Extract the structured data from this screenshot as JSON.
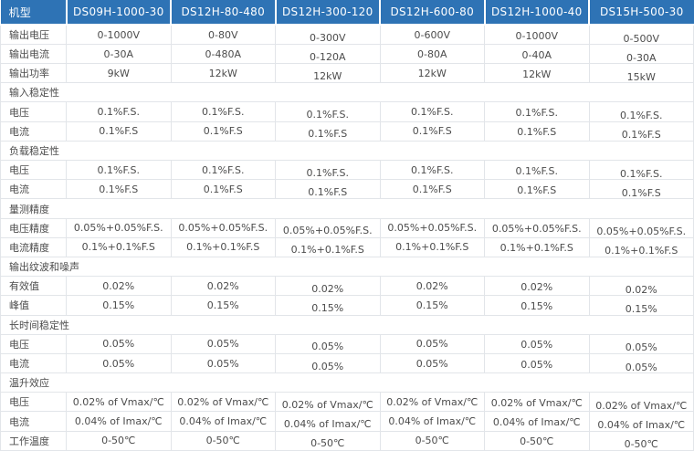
{
  "table": {
    "header": {
      "label": "机型",
      "models": [
        "DS09H-1000-30",
        "DS12H-80-480",
        "DS12H-300-120",
        "DS12H-600-80",
        "DS12H-1000-40",
        "DS15H-500-30"
      ]
    },
    "rows": [
      {
        "type": "data",
        "label": "输出电压",
        "values": [
          "0-1000V",
          "0-80V",
          "0-300V",
          "0-600V",
          "0-1000V",
          "0-500V"
        ]
      },
      {
        "type": "data",
        "label": "输出电流",
        "values": [
          "0-30A",
          "0-480A",
          "0-120A",
          "0-80A",
          "0-40A",
          "0-30A"
        ]
      },
      {
        "type": "data",
        "label": "输出功率",
        "values": [
          "9kW",
          "12kW",
          "12kW",
          "12kW",
          "12kW",
          "15kW"
        ]
      },
      {
        "type": "section",
        "label": "输入稳定性"
      },
      {
        "type": "data",
        "label": "电压",
        "values": [
          "0.1%F.S.",
          "0.1%F.S.",
          "0.1%F.S.",
          "0.1%F.S.",
          "0.1%F.S.",
          "0.1%F.S."
        ]
      },
      {
        "type": "data",
        "label": "电流",
        "values": [
          "0.1%F.S",
          "0.1%F.S",
          "0.1%F.S",
          "0.1%F.S",
          "0.1%F.S",
          "0.1%F.S"
        ]
      },
      {
        "type": "section",
        "label": "负载稳定性"
      },
      {
        "type": "data",
        "label": "电压",
        "values": [
          "0.1%F.S.",
          "0.1%F.S.",
          "0.1%F.S.",
          "0.1%F.S.",
          "0.1%F.S.",
          "0.1%F.S."
        ]
      },
      {
        "type": "data",
        "label": "电流",
        "values": [
          "0.1%F.S",
          "0.1%F.S",
          "0.1%F.S",
          "0.1%F.S",
          "0.1%F.S",
          "0.1%F.S"
        ]
      },
      {
        "type": "section",
        "label": "量测精度"
      },
      {
        "type": "data",
        "label": "电压精度",
        "values": [
          "0.05%+0.05%F.S.",
          "0.05%+0.05%F.S.",
          "0.05%+0.05%F.S.",
          "0.05%+0.05%F.S.",
          "0.05%+0.05%F.S.",
          "0.05%+0.05%F.S."
        ]
      },
      {
        "type": "data",
        "label": "电流精度",
        "values": [
          "0.1%+0.1%F.S",
          "0.1%+0.1%F.S",
          "0.1%+0.1%F.S",
          "0.1%+0.1%F.S",
          "0.1%+0.1%F.S",
          "0.1%+0.1%F.S"
        ]
      },
      {
        "type": "section",
        "label": "输出纹波和噪声"
      },
      {
        "type": "data",
        "label": "有效值",
        "values": [
          "0.02%",
          "0.02%",
          "0.02%",
          "0.02%",
          "0.02%",
          "0.02%"
        ]
      },
      {
        "type": "data",
        "label": "峰值",
        "values": [
          "0.15%",
          "0.15%",
          "0.15%",
          "0.15%",
          "0.15%",
          "0.15%"
        ]
      },
      {
        "type": "section",
        "label": "长时间稳定性"
      },
      {
        "type": "data",
        "label": "电压",
        "values": [
          "0.05%",
          "0.05%",
          "0.05%",
          "0.05%",
          "0.05%",
          "0.05%"
        ]
      },
      {
        "type": "data",
        "label": "电流",
        "values": [
          "0.05%",
          "0.05%",
          "0.05%",
          "0.05%",
          "0.05%",
          "0.05%"
        ]
      },
      {
        "type": "section",
        "label": "温升效应"
      },
      {
        "type": "data",
        "label": "电压",
        "values": [
          "0.02% of Vmax/℃",
          "0.02% of Vmax/℃",
          "0.02% of Vmax/℃",
          "0.02% of Vmax/℃",
          "0.02% of Vmax/℃",
          "0.02% of Vmax/℃"
        ]
      },
      {
        "type": "data",
        "label": "电流",
        "values": [
          "0.04% of Imax/℃",
          "0.04% of Imax/℃",
          "0.04% of Imax/℃",
          "0.04% of Imax/℃",
          "0.04% of Imax/℃",
          "0.04% of Imax/℃"
        ]
      },
      {
        "type": "data",
        "label": "工作温度",
        "values": [
          "0-50℃",
          "0-50℃",
          "0-50℃",
          "0-50℃",
          "0-50℃",
          "0-50℃"
        ]
      }
    ]
  },
  "colors": {
    "header_bg": "#2e73b5",
    "header_text": "#ffffff",
    "border": "#e2e5e9",
    "text": "#4c4c4c"
  }
}
